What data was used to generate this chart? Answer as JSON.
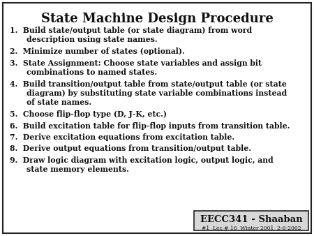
{
  "title": "State Machine Design Procedure",
  "title_fontsize": 13,
  "bg_color": "#ffffff",
  "border_color": "#222222",
  "items": [
    {
      "lines": [
        {
          "indent": false,
          "text": "1.  Build state/output table (or state diagram) from word"
        },
        {
          "indent": true,
          "text": "description using state names."
        }
      ]
    },
    {
      "lines": [
        {
          "indent": false,
          "text": "2.  Minimize number of states (optional)."
        }
      ]
    },
    {
      "lines": [
        {
          "indent": false,
          "text": "3.  State Assignment: Choose state variables and assign bit"
        },
        {
          "indent": true,
          "text": "combinations to named states."
        }
      ]
    },
    {
      "lines": [
        {
          "indent": false,
          "text": "4.  Build transition/output table from state/output table (or state"
        },
        {
          "indent": true,
          "text": "diagram) by substituting state variable combinations instead"
        },
        {
          "indent": true,
          "text": "of state names."
        }
      ]
    },
    {
      "lines": [
        {
          "indent": false,
          "text": "5.  Choose flip-flop type (D, J-K, etc.)"
        }
      ]
    },
    {
      "lines": [
        {
          "indent": false,
          "text": "6.  Build excitation table for flip-flop inputs from transition table."
        }
      ]
    },
    {
      "lines": [
        {
          "indent": false,
          "text": "7.  Derive excitation equations from excitation table."
        }
      ]
    },
    {
      "lines": [
        {
          "indent": false,
          "text": "8.  Derive output equations from transition/output table."
        }
      ]
    },
    {
      "lines": [
        {
          "indent": false,
          "text": "9.  Draw logic diagram with excitation logic, output logic, and"
        },
        {
          "indent": true,
          "text": "state memory elements."
        }
      ]
    }
  ],
  "item_fontsize": 7.8,
  "footer_main": "EECC341 - Shaaban",
  "footer_sub": "#1  Lec # 16  Winter 2001  2-6-2002",
  "footer_main_fontsize": 9.5,
  "footer_sub_fontsize": 5.5,
  "text_color": "#111111",
  "footer_box_color": "#d8d8d8"
}
